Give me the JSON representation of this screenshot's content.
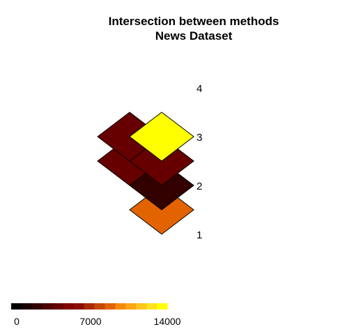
{
  "chart_data": {
    "type": "heatmap",
    "title": "Intersection between methods",
    "subtitle": "News Dataset",
    "row_labels": [
      "1",
      "2",
      "3",
      "4"
    ],
    "cells": [
      {
        "row": 1,
        "col": 1,
        "value": 9000
      },
      {
        "row": 2,
        "col": 1,
        "value": 2700
      },
      {
        "row": 2,
        "col": 2,
        "value": 3800
      },
      {
        "row": 3,
        "col": 1,
        "value": 3800
      },
      {
        "row": 3,
        "col": 2,
        "value": 3800
      },
      {
        "row": 4,
        "col": 1,
        "value": 14000
      }
    ],
    "colorbar": {
      "min": 0,
      "max": 14000,
      "tick_labels": [
        "0",
        "7000",
        "14000"
      ],
      "tick_values": [
        0,
        7000,
        14000
      ],
      "colors": [
        "#000000",
        "#1a0000",
        "#330000",
        "#4d0000",
        "#660000",
        "#800000",
        "#8b0d00",
        "#a82a00",
        "#c64800",
        "#e26300",
        "#f5890a",
        "#ffa712",
        "#ffc61d",
        "#ffe320",
        "#ffff00"
      ]
    }
  }
}
